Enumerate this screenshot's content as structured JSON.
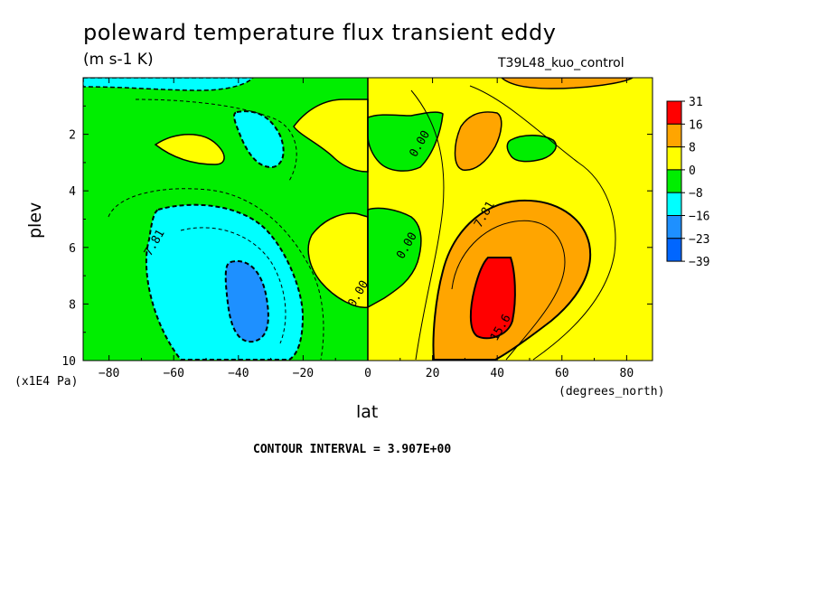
{
  "title": "poleward temperature flux transient eddy",
  "units": "(m s-1 K)",
  "run_name": "T39L48_kuo_control",
  "contour_interval": "CONTOUR INTERVAL = 3.907E+00",
  "x_unit": "(degrees_north)",
  "y_unit": "(x1E4 Pa)",
  "colors": {
    "red": "#ff0000",
    "orange": "#ffa500",
    "yellow": "#ffff00",
    "green": "#00ee00",
    "cyan": "#00ffff",
    "lightblue": "#1e90ff",
    "blue": "#0066ff"
  },
  "chart_data": {
    "type": "heatmap",
    "title": "poleward temperature flux transient eddy",
    "xlabel": "lat",
    "ylabel": "plev",
    "xlim": [
      -88,
      88
    ],
    "ylim": [
      0,
      10
    ],
    "y_inverted": true,
    "xticks": [
      -80,
      -60,
      -40,
      -20,
      0,
      20,
      40,
      60,
      80
    ],
    "yticks": [
      2,
      4,
      6,
      8,
      10
    ],
    "legend": {
      "placement": "right",
      "levels": [
        "31",
        "16",
        "8",
        "0",
        "-8",
        "-16",
        "-23",
        "-39"
      ],
      "colors": [
        "#ff0000",
        "#ffa500",
        "#ffff00",
        "#00ee00",
        "#00ffff",
        "#1e90ff",
        "#0066ff"
      ]
    },
    "contour_labels": [
      {
        "text": "7.81",
        "x": -65,
        "y": 5.9
      },
      {
        "text": "7.81",
        "x": 37,
        "y": 4.9
      },
      {
        "text": "0.00",
        "x": 17,
        "y": 2.4
      },
      {
        "text": "0.00",
        "x": 13,
        "y": 6.0
      },
      {
        "text": "0.00",
        "x": -2,
        "y": 7.7
      },
      {
        "text": "15.6",
        "x": 42,
        "y": 8.9
      }
    ],
    "regions": [
      {
        "value_class": "green",
        "x_range": [
          -88,
          0
        ]
      },
      {
        "value_class": "yellow",
        "x_range": [
          0,
          88
        ]
      },
      {
        "value_class": "cyan",
        "center": [
          -45,
          7.0
        ]
      },
      {
        "value_class": "lightblue",
        "center": [
          -40,
          8.2
        ]
      },
      {
        "value_class": "orange",
        "center": [
          45,
          7.2
        ]
      },
      {
        "value_class": "red",
        "center": [
          39,
          8.0
        ]
      }
    ]
  }
}
